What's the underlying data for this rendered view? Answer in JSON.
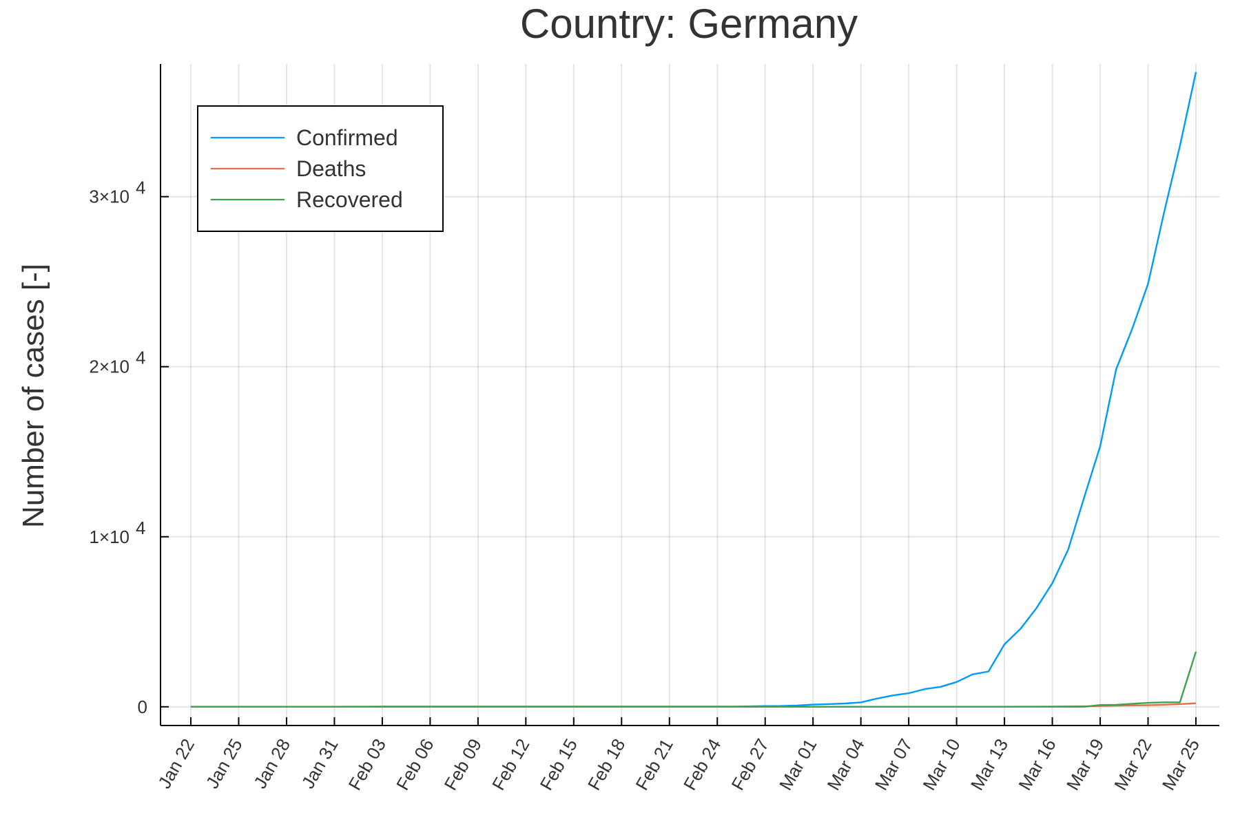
{
  "chart_data": {
    "type": "line",
    "title": "Country: Germany",
    "xlabel": "",
    "ylabel": "Number of cases [-]",
    "x": [
      "Jan 22",
      "Jan 23",
      "Jan 24",
      "Jan 25",
      "Jan 26",
      "Jan 27",
      "Jan 28",
      "Jan 29",
      "Jan 30",
      "Jan 31",
      "Feb 01",
      "Feb 02",
      "Feb 03",
      "Feb 04",
      "Feb 05",
      "Feb 06",
      "Feb 07",
      "Feb 08",
      "Feb 09",
      "Feb 10",
      "Feb 11",
      "Feb 12",
      "Feb 13",
      "Feb 14",
      "Feb 15",
      "Feb 16",
      "Feb 17",
      "Feb 18",
      "Feb 19",
      "Feb 20",
      "Feb 21",
      "Feb 22",
      "Feb 23",
      "Feb 24",
      "Feb 25",
      "Feb 26",
      "Feb 27",
      "Feb 28",
      "Feb 29",
      "Mar 01",
      "Mar 02",
      "Mar 03",
      "Mar 04",
      "Mar 05",
      "Mar 06",
      "Mar 07",
      "Mar 08",
      "Mar 09",
      "Mar 10",
      "Mar 11",
      "Mar 12",
      "Mar 13",
      "Mar 14",
      "Mar 15",
      "Mar 16",
      "Mar 17",
      "Mar 18",
      "Mar 19",
      "Mar 20",
      "Mar 21",
      "Mar 22",
      "Mar 23",
      "Mar 24",
      "Mar 25"
    ],
    "x_tick_labels": [
      "Jan 22",
      "Jan 25",
      "Jan 28",
      "Jan 31",
      "Feb 03",
      "Feb 06",
      "Feb 09",
      "Feb 12",
      "Feb 15",
      "Feb 18",
      "Feb 21",
      "Feb 24",
      "Feb 27",
      "Mar 01",
      "Mar 04",
      "Mar 07",
      "Mar 10",
      "Mar 13",
      "Mar 16",
      "Mar 19",
      "Mar 22",
      "Mar 25"
    ],
    "y_ticks": [
      {
        "value": 0,
        "label": "0",
        "exp": ""
      },
      {
        "value": 10000,
        "label": "1×10",
        "exp": "4"
      },
      {
        "value": 20000,
        "label": "2×10",
        "exp": "4"
      },
      {
        "value": 30000,
        "label": "3×10",
        "exp": "4"
      }
    ],
    "ylim": [
      -1100,
      37800
    ],
    "grid": true,
    "legend_position": "top-left",
    "series": [
      {
        "name": "Confirmed",
        "color": "#009AFA",
        "values": [
          0,
          0,
          0,
          0,
          0,
          1,
          4,
          4,
          4,
          5,
          8,
          10,
          12,
          12,
          12,
          12,
          13,
          13,
          14,
          14,
          16,
          16,
          16,
          16,
          16,
          16,
          16,
          16,
          16,
          16,
          16,
          16,
          16,
          16,
          17,
          27,
          46,
          48,
          79,
          130,
          159,
          196,
          262,
          482,
          670,
          799,
          1040,
          1176,
          1457,
          1908,
          2078,
          3675,
          4585,
          5795,
          7272,
          9257,
          12327,
          15320,
          19848,
          22213,
          24873,
          29056,
          32986,
          37323
        ]
      },
      {
        "name": "Deaths",
        "color": "#E26F46",
        "values": [
          0,
          0,
          0,
          0,
          0,
          0,
          0,
          0,
          0,
          0,
          0,
          0,
          0,
          0,
          0,
          0,
          0,
          0,
          0,
          0,
          0,
          0,
          0,
          0,
          0,
          0,
          0,
          0,
          0,
          0,
          0,
          0,
          0,
          0,
          0,
          0,
          0,
          0,
          0,
          0,
          0,
          0,
          0,
          0,
          0,
          0,
          0,
          2,
          2,
          3,
          3,
          7,
          9,
          11,
          17,
          24,
          28,
          44,
          67,
          84,
          94,
          123,
          157,
          206
        ]
      },
      {
        "name": "Recovered",
        "color": "#3DA44D",
        "values": [
          0,
          0,
          0,
          0,
          0,
          0,
          0,
          0,
          0,
          0,
          0,
          0,
          0,
          0,
          0,
          0,
          0,
          0,
          0,
          0,
          0,
          0,
          0,
          0,
          0,
          0,
          0,
          0,
          0,
          0,
          0,
          0,
          0,
          0,
          0,
          0,
          0,
          0,
          0,
          0,
          0,
          0,
          0,
          0,
          0,
          0,
          0,
          0,
          0,
          0,
          0,
          0,
          0,
          0,
          0,
          0,
          0,
          105,
          113,
          180,
          233,
          266,
          266,
          3243
        ]
      }
    ]
  }
}
